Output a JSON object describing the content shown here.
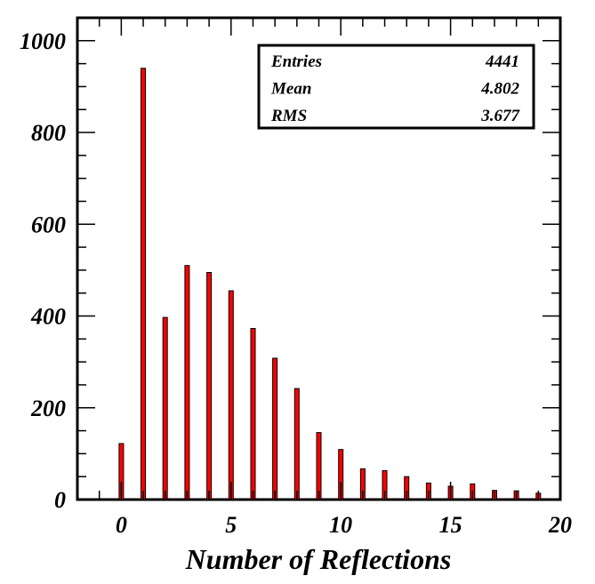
{
  "chart_data": {
    "type": "bar",
    "title": "",
    "xlabel": "Number of Reflections",
    "ylabel": "",
    "xlim": [
      -2,
      20
    ],
    "ylim": [
      0,
      1050
    ],
    "grid": false,
    "bar_color": "#ff0000",
    "bar_edge_color": "#000000",
    "x": [
      0,
      1,
      2,
      3,
      4,
      5,
      6,
      7,
      8,
      9,
      10,
      11,
      12,
      13,
      14,
      15,
      16,
      17,
      18,
      19
    ],
    "values": [
      122,
      940,
      397,
      510,
      495,
      455,
      373,
      308,
      242,
      146,
      109,
      67,
      63,
      50,
      36,
      29,
      34,
      20,
      19,
      14
    ],
    "x_ticks": [
      "0",
      "5",
      "10",
      "15",
      "20"
    ],
    "y_ticks": [
      "0",
      "200",
      "400",
      "600",
      "800",
      "1000"
    ],
    "stats": [
      {
        "label": "Entries",
        "value": "4441"
      },
      {
        "label": "Mean",
        "value": "4.802"
      },
      {
        "label": "RMS",
        "value": "3.677"
      }
    ]
  }
}
